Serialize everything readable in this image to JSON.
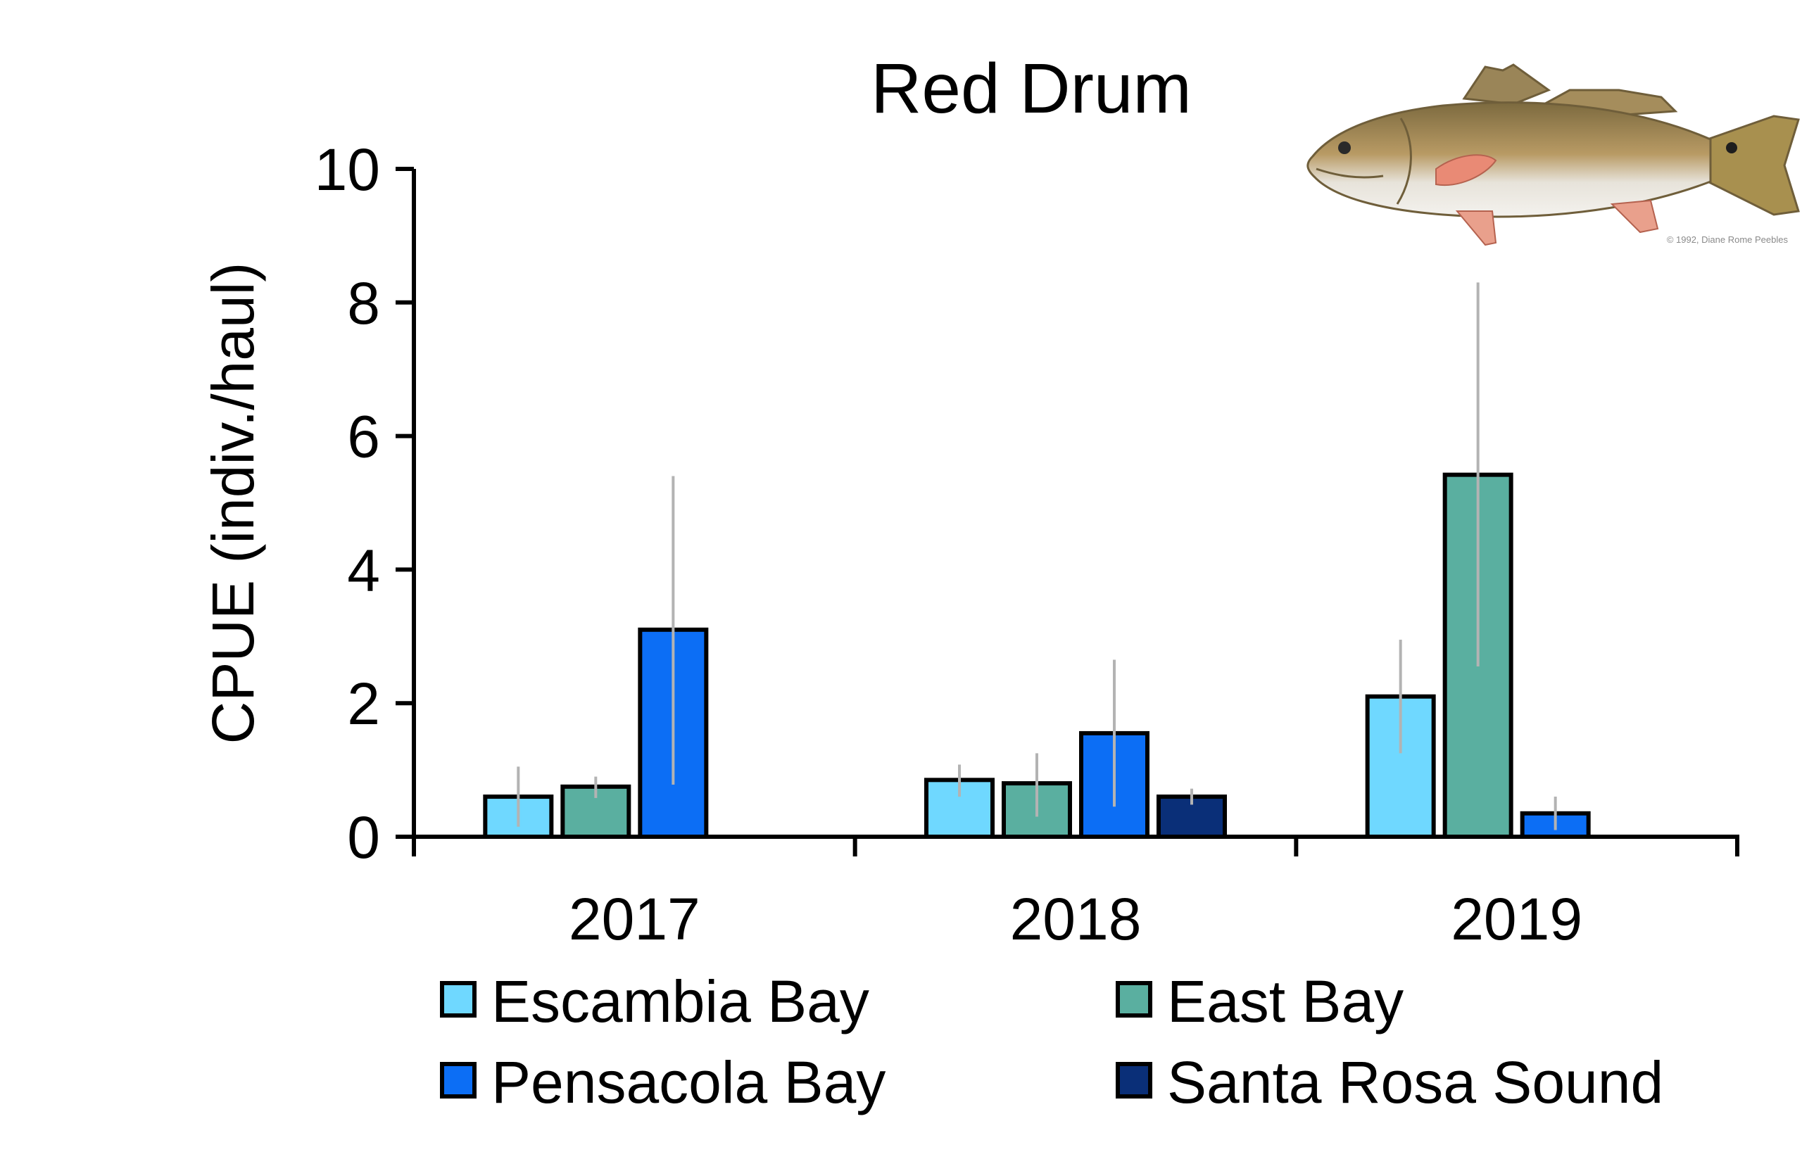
{
  "chart_data": {
    "type": "bar",
    "title": "Red Drum",
    "xlabel": "",
    "ylabel": "CPUE (indiv./haul)",
    "ylim": [
      0,
      10
    ],
    "yticks": [
      0,
      2,
      4,
      6,
      8,
      10
    ],
    "grid": false,
    "legend_position": "bottom",
    "categories": [
      "2017",
      "2018",
      "2019"
    ],
    "series": [
      {
        "name": "Escambia Bay",
        "color": "#6fd8ff",
        "values": [
          0.6,
          0.85,
          2.1
        ],
        "err_low": [
          0.15,
          0.6,
          1.25
        ],
        "err_high": [
          1.05,
          1.08,
          2.95
        ]
      },
      {
        "name": "East Bay",
        "color": "#5aafa0",
        "values": [
          0.75,
          0.8,
          5.42
        ],
        "err_low": [
          0.58,
          0.3,
          2.55
        ],
        "err_high": [
          0.9,
          1.25,
          8.3
        ]
      },
      {
        "name": "Pensacola Bay",
        "color": "#0c6ef5",
        "values": [
          3.1,
          1.55,
          0.35
        ],
        "err_low": [
          0.78,
          0.45,
          0.1
        ],
        "err_high": [
          5.4,
          2.65,
          0.6
        ]
      },
      {
        "name": "Santa Rosa Sound",
        "color": "#0a2f78",
        "values": [
          null,
          0.6,
          null
        ],
        "err_low": [
          null,
          0.48,
          null
        ],
        "err_high": [
          null,
          0.72,
          null
        ]
      }
    ],
    "error_bar_color": "#b3b3b3",
    "illustration": {
      "name": "red-drum-fish-illustration",
      "credit": "© 1992, Diane Rome Peebles"
    }
  }
}
